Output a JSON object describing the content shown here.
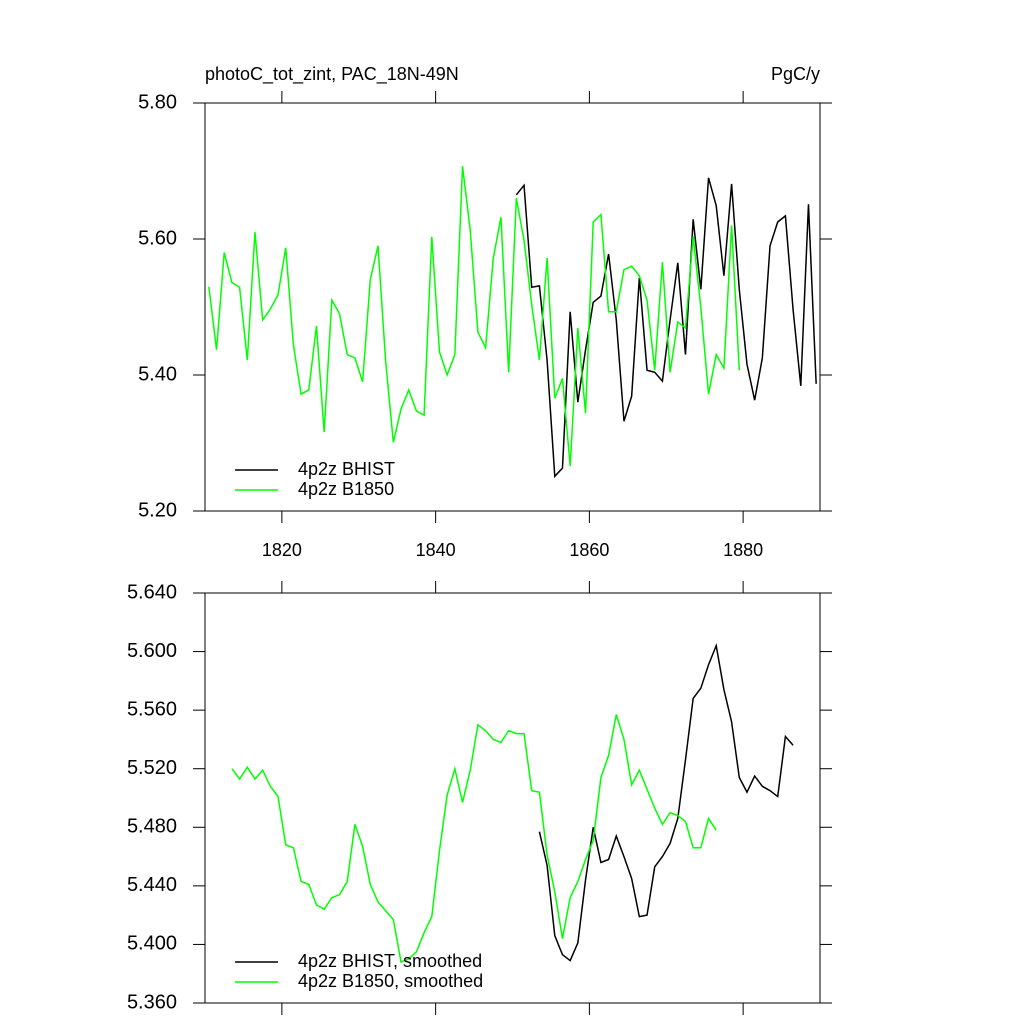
{
  "chart_data": [
    {
      "type": "line",
      "title": "photoC_tot_zint, PAC_18N-49N",
      "units": "PgC/y",
      "xlim": [
        1810,
        1890
      ],
      "xticks": [
        1820,
        1840,
        1860,
        1880
      ],
      "xtick_labels": true,
      "ylim": [
        5.2,
        5.8
      ],
      "yticks": [
        {
          "value": 5.2,
          "label": "5.20"
        },
        {
          "value": 5.4,
          "label": "5.40"
        },
        {
          "value": 5.6,
          "label": "5.60"
        },
        {
          "value": 5.8,
          "label": "5.80"
        }
      ],
      "legend": "lower left",
      "series": [
        {
          "name": "4p2z BHIST",
          "color": "#000000",
          "x": [
            1850.5,
            1851.5,
            1852.5,
            1853.5,
            1854.5,
            1855.5,
            1856.5,
            1857.5,
            1858.5,
            1859.5,
            1860.5,
            1861.5,
            1862.5,
            1863.5,
            1864.5,
            1865.5,
            1866.5,
            1867.5,
            1868.5,
            1869.5,
            1870.5,
            1871.5,
            1872.5,
            1873.5,
            1874.5,
            1875.5,
            1876.5,
            1877.5,
            1878.5,
            1879.5,
            1880.5,
            1881.5,
            1882.5,
            1883.5,
            1884.5,
            1885.5,
            1886.5,
            1887.5,
            1888.5,
            1889.5
          ],
          "values": [
            5.665,
            5.679,
            5.529,
            5.531,
            5.422,
            5.251,
            5.263,
            5.493,
            5.36,
            5.437,
            5.507,
            5.516,
            5.578,
            5.481,
            5.332,
            5.369,
            5.543,
            5.407,
            5.404,
            5.391,
            5.481,
            5.565,
            5.43,
            5.629,
            5.526,
            5.69,
            5.649,
            5.546,
            5.681,
            5.526,
            5.416,
            5.363,
            5.425,
            5.59,
            5.625,
            5.634,
            5.496,
            5.384,
            5.651,
            5.387
          ]
        },
        {
          "name": "4p2z B1850",
          "color": "#00ff00",
          "x": [
            1810.5,
            1811.5,
            1812.5,
            1813.5,
            1814.5,
            1815.5,
            1816.5,
            1817.5,
            1818.5,
            1819.5,
            1820.5,
            1821.5,
            1822.5,
            1823.5,
            1824.5,
            1825.5,
            1826.5,
            1827.5,
            1828.5,
            1829.5,
            1830.5,
            1831.5,
            1832.5,
            1833.5,
            1834.5,
            1835.5,
            1836.5,
            1837.5,
            1838.5,
            1839.5,
            1840.5,
            1841.5,
            1842.5,
            1843.5,
            1844.5,
            1845.5,
            1846.5,
            1847.5,
            1848.5,
            1849.5,
            1850.5,
            1851.5,
            1852.5,
            1853.5,
            1854.5,
            1855.5,
            1856.5,
            1857.5,
            1858.5,
            1859.5,
            1860.5,
            1861.5,
            1862.5,
            1863.5,
            1864.5,
            1865.5,
            1866.5,
            1867.5,
            1868.5,
            1869.5,
            1870.5,
            1871.5,
            1872.5,
            1873.5,
            1874.5,
            1875.5,
            1876.5,
            1877.5,
            1878.5,
            1879.5
          ],
          "values": [
            5.53,
            5.437,
            5.58,
            5.536,
            5.529,
            5.422,
            5.61,
            5.481,
            5.497,
            5.518,
            5.587,
            5.444,
            5.372,
            5.378,
            5.472,
            5.316,
            5.51,
            5.49,
            5.43,
            5.425,
            5.39,
            5.54,
            5.59,
            5.42,
            5.301,
            5.35,
            5.378,
            5.347,
            5.341,
            5.603,
            5.434,
            5.4,
            5.43,
            5.707,
            5.613,
            5.463,
            5.44,
            5.572,
            5.632,
            5.404,
            5.66,
            5.598,
            5.503,
            5.422,
            5.572,
            5.366,
            5.395,
            5.266,
            5.469,
            5.344,
            5.625,
            5.636,
            5.493,
            5.493,
            5.555,
            5.56,
            5.546,
            5.51,
            5.407,
            5.566,
            5.404,
            5.478,
            5.469,
            5.604,
            5.499,
            5.372,
            5.43,
            5.41,
            5.62,
            5.407
          ]
        }
      ]
    },
    {
      "type": "line",
      "xlim": [
        1810,
        1890
      ],
      "xticks": [
        1820,
        1840,
        1860,
        1880
      ],
      "xtick_labels": false,
      "ylim": [
        5.36,
        5.64
      ],
      "yticks": [
        {
          "value": 5.36,
          "label": "5.360"
        },
        {
          "value": 5.4,
          "label": "5.400"
        },
        {
          "value": 5.44,
          "label": "5.440"
        },
        {
          "value": 5.48,
          "label": "5.480"
        },
        {
          "value": 5.52,
          "label": "5.520"
        },
        {
          "value": 5.56,
          "label": "5.560"
        },
        {
          "value": 5.6,
          "label": "5.600"
        },
        {
          "value": 5.64,
          "label": "5.640"
        }
      ],
      "legend": "lower left",
      "series": [
        {
          "name": "4p2z BHIST, smoothed",
          "color": "#000000",
          "x": [
            1853.5,
            1854.5,
            1855.5,
            1856.5,
            1857.5,
            1858.5,
            1859.5,
            1860.5,
            1861.5,
            1862.5,
            1863.5,
            1864.5,
            1865.5,
            1866.5,
            1867.5,
            1868.5,
            1869.5,
            1870.5,
            1871.5,
            1872.5,
            1873.5,
            1874.5,
            1875.5,
            1876.5,
            1877.5,
            1878.5,
            1879.5,
            1880.5,
            1881.5,
            1882.5,
            1883.5,
            1884.5,
            1885.5,
            1886.5
          ],
          "values": [
            5.477,
            5.454,
            5.406,
            5.393,
            5.389,
            5.401,
            5.444,
            5.48,
            5.456,
            5.458,
            5.474,
            5.46,
            5.445,
            5.419,
            5.42,
            5.453,
            5.46,
            5.469,
            5.486,
            5.526,
            5.568,
            5.575,
            5.591,
            5.604,
            5.574,
            5.552,
            5.514,
            5.504,
            5.515,
            5.508,
            5.505,
            5.501,
            5.542,
            5.536
          ]
        },
        {
          "name": "4p2z B1850, smoothed",
          "color": "#00ff00",
          "x": [
            1813.5,
            1814.5,
            1815.5,
            1816.5,
            1817.5,
            1818.5,
            1819.5,
            1820.5,
            1821.5,
            1822.5,
            1823.5,
            1824.5,
            1825.5,
            1826.5,
            1827.5,
            1828.5,
            1829.5,
            1830.5,
            1831.5,
            1832.5,
            1833.5,
            1834.5,
            1835.5,
            1836.5,
            1837.5,
            1838.5,
            1839.5,
            1840.5,
            1841.5,
            1842.5,
            1843.5,
            1844.5,
            1845.5,
            1846.5,
            1847.5,
            1848.5,
            1849.5,
            1850.5,
            1851.5,
            1852.5,
            1853.5,
            1854.5,
            1855.5,
            1856.5,
            1857.5,
            1858.5,
            1859.5,
            1860.5,
            1861.5,
            1862.5,
            1863.5,
            1864.5,
            1865.5,
            1866.5,
            1867.5,
            1868.5,
            1869.5,
            1870.5,
            1871.5,
            1872.5,
            1873.5,
            1874.5,
            1875.5,
            1876.5
          ],
          "values": [
            5.52,
            5.513,
            5.521,
            5.513,
            5.519,
            5.508,
            5.501,
            5.468,
            5.466,
            5.443,
            5.441,
            5.427,
            5.424,
            5.432,
            5.434,
            5.443,
            5.482,
            5.467,
            5.441,
            5.429,
            5.423,
            5.417,
            5.388,
            5.39,
            5.395,
            5.408,
            5.419,
            5.464,
            5.502,
            5.52,
            5.497,
            5.519,
            5.55,
            5.546,
            5.54,
            5.538,
            5.546,
            5.544,
            5.544,
            5.505,
            5.504,
            5.461,
            5.436,
            5.404,
            5.432,
            5.443,
            5.458,
            5.471,
            5.514,
            5.529,
            5.557,
            5.54,
            5.509,
            5.519,
            5.506,
            5.493,
            5.482,
            5.49,
            5.488,
            5.484,
            5.466,
            5.466,
            5.486,
            5.478
          ]
        }
      ]
    }
  ]
}
